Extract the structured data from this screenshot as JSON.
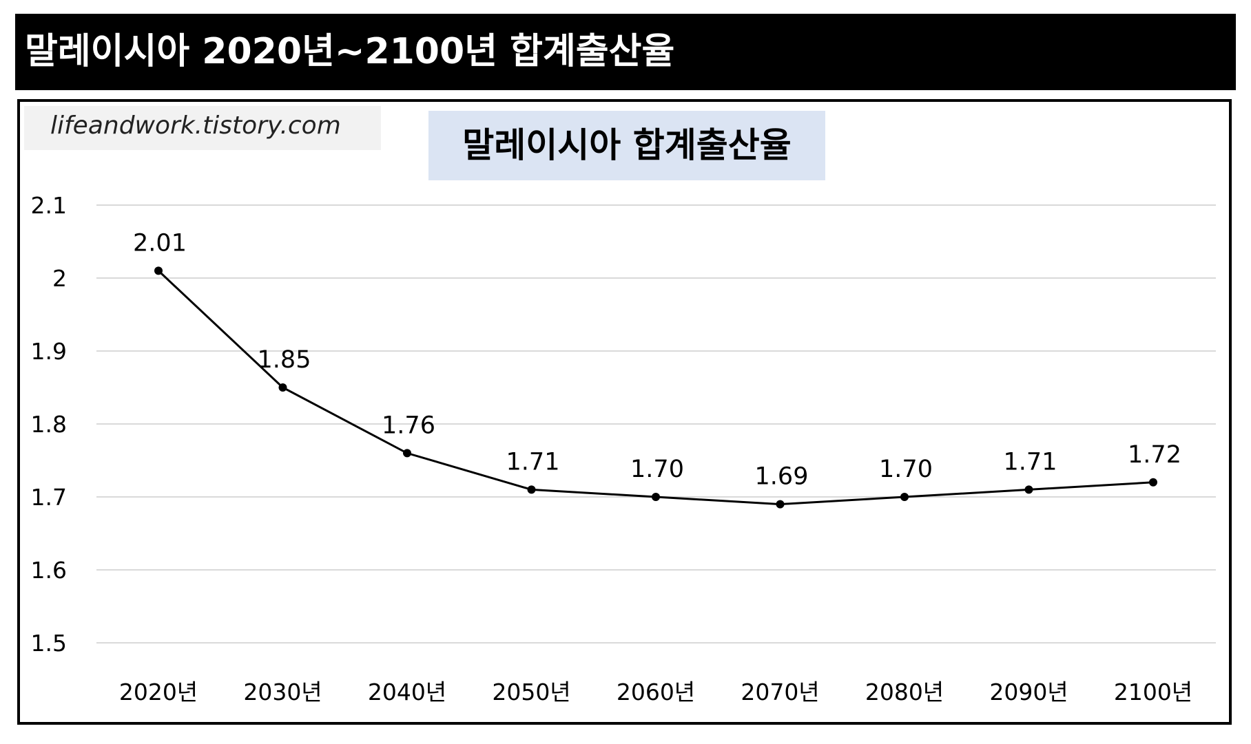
{
  "header": {
    "title": "말레이시아 2020년~2100년 합계출산율"
  },
  "watermark": {
    "text": "lifeandwork.tistory.com"
  },
  "chart_data": {
    "type": "line",
    "title": "말레이시아 합계출산율",
    "xlabel": "",
    "ylabel": "",
    "categories": [
      "2020년",
      "2030년",
      "2040년",
      "2050년",
      "2060년",
      "2070년",
      "2080년",
      "2090년",
      "2100년"
    ],
    "series": [
      {
        "values": [
          2.01,
          1.85,
          1.76,
          1.71,
          1.7,
          1.69,
          1.7,
          1.71,
          1.72
        ]
      }
    ],
    "data_labels": [
      "2.01",
      "1.85",
      "1.76",
      "1.71",
      "1.70",
      "1.69",
      "1.70",
      "1.71",
      "1.72"
    ],
    "ylim": [
      1.5,
      2.1
    ],
    "yticks": [
      "2.1",
      "2",
      "1.9",
      "1.8",
      "1.7",
      "1.6",
      "1.5"
    ],
    "grid": true,
    "legend": "none",
    "colors": {
      "line": "#000000",
      "marker": "#000000",
      "grid": "#d9d9d9",
      "title_bg": "#dbe4f3",
      "banner_bg": "#000000"
    }
  }
}
